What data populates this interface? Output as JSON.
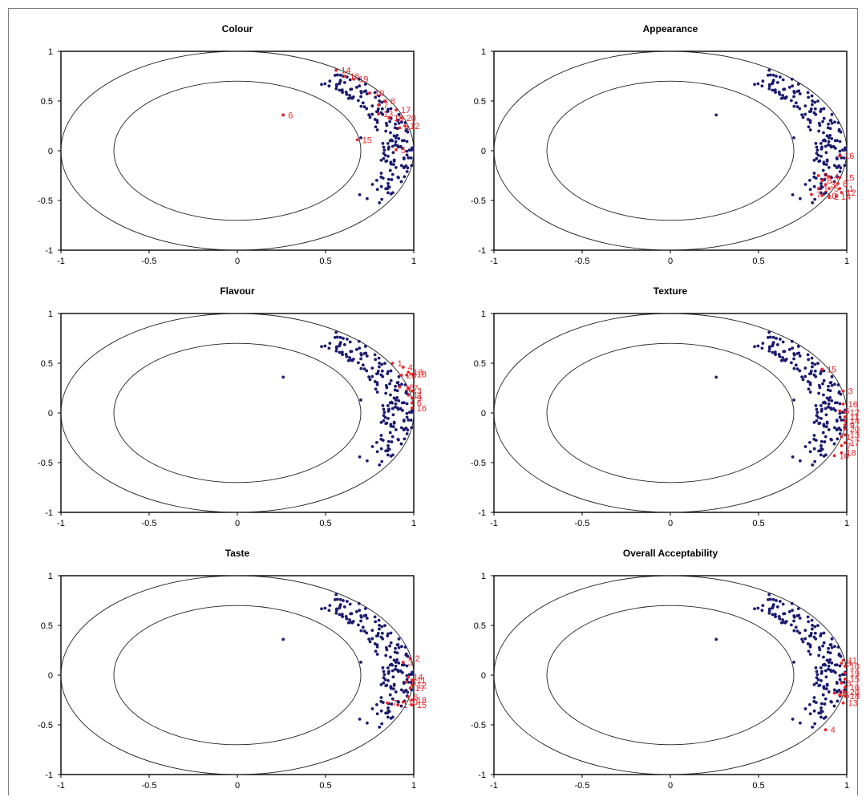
{
  "colors": {
    "background_points": "#1a1a6e",
    "highlight": "#e8262a",
    "axis": "#000000"
  },
  "chart_data": [
    {
      "type": "scatter",
      "title": "Colour",
      "xlim": [
        -1,
        1
      ],
      "ylim": [
        -1,
        1
      ],
      "xticks": [
        "-1",
        "-0.5",
        "0",
        "0.5",
        "1"
      ],
      "yticks": [
        "1",
        "0.5",
        "0",
        "-0.5",
        "-1"
      ],
      "circles": [
        1,
        0.7
      ],
      "labels": [
        {
          "t": "14",
          "x": 0.56,
          "y": 0.81
        },
        {
          "t": "16",
          "x": 0.61,
          "y": 0.75
        },
        {
          "t": "19",
          "x": 0.66,
          "y": 0.72
        },
        {
          "t": "10",
          "x": 0.75,
          "y": 0.58
        },
        {
          "t": "8",
          "x": 0.84,
          "y": 0.5
        },
        {
          "t": "7",
          "x": 0.8,
          "y": 0.46
        },
        {
          "t": "17",
          "x": 0.9,
          "y": 0.41
        },
        {
          "t": "13",
          "x": 0.8,
          "y": 0.37
        },
        {
          "t": "18",
          "x": 0.86,
          "y": 0.33
        },
        {
          "t": "20",
          "x": 0.93,
          "y": 0.33
        },
        {
          "t": "12",
          "x": 0.95,
          "y": 0.25
        },
        {
          "t": "4",
          "x": 0.92,
          "y": 0.23
        },
        {
          "t": "6",
          "x": 0.26,
          "y": 0.36
        },
        {
          "t": "15",
          "x": 0.68,
          "y": 0.11
        },
        {
          "t": "5",
          "x": 0.9,
          "y": 0.01
        }
      ]
    },
    {
      "type": "scatter",
      "title": "Appearance",
      "xlim": [
        -1,
        1
      ],
      "ylim": [
        -1,
        1
      ],
      "xticks": [
        "-1",
        "-0.5",
        "0",
        "0.5",
        "1"
      ],
      "yticks": [
        "1",
        "0.5",
        "0",
        "-0.5",
        "-1"
      ],
      "circles": [
        1,
        0.7
      ],
      "labels": [
        {
          "t": "16",
          "x": 0.96,
          "y": -0.05
        },
        {
          "t": "9",
          "x": 0.84,
          "y": -0.25
        },
        {
          "t": "4",
          "x": 0.9,
          "y": -0.26
        },
        {
          "t": "15",
          "x": 0.96,
          "y": -0.27
        },
        {
          "t": "8",
          "x": 0.86,
          "y": -0.3
        },
        {
          "t": "3",
          "x": 0.88,
          "y": -0.34
        },
        {
          "t": "6",
          "x": 0.95,
          "y": -0.33
        },
        {
          "t": "1",
          "x": 0.84,
          "y": -0.38
        },
        {
          "t": "5",
          "x": 0.9,
          "y": -0.38
        },
        {
          "t": "11",
          "x": 0.96,
          "y": -0.38
        },
        {
          "t": "7",
          "x": 0.8,
          "y": -0.44
        },
        {
          "t": "2",
          "x": 0.9,
          "y": -0.46
        },
        {
          "t": "12",
          "x": 0.97,
          "y": -0.42
        },
        {
          "t": "10",
          "x": 0.86,
          "y": -0.45
        },
        {
          "t": "14",
          "x": 0.94,
          "y": -0.46
        }
      ]
    },
    {
      "type": "scatter",
      "title": "Flavour",
      "xlim": [
        -1,
        1
      ],
      "ylim": [
        -1,
        1
      ],
      "xticks": [
        "-1",
        "-0.5",
        "0",
        "0.5",
        "1"
      ],
      "yticks": [
        "1",
        "0.5",
        "0",
        "-0.5",
        "-1"
      ],
      "circles": [
        1,
        0.7
      ],
      "labels": [
        {
          "t": "1",
          "x": 0.88,
          "y": 0.5
        },
        {
          "t": "4",
          "x": 0.94,
          "y": 0.46
        },
        {
          "t": "13",
          "x": 0.97,
          "y": 0.41
        },
        {
          "t": "2",
          "x": 0.93,
          "y": 0.38
        },
        {
          "t": "8",
          "x": 0.96,
          "y": 0.38
        },
        {
          "t": "18",
          "x": 0.99,
          "y": 0.39
        },
        {
          "t": "18",
          "x": 0.92,
          "y": 0.26
        },
        {
          "t": "7",
          "x": 0.97,
          "y": 0.25
        },
        {
          "t": "3",
          "x": 0.99,
          "y": 0.22
        },
        {
          "t": "11",
          "x": 0.97,
          "y": 0.18
        },
        {
          "t": "9",
          "x": 0.99,
          "y": 0.15
        },
        {
          "t": "6",
          "x": 0.99,
          "y": 0.1
        },
        {
          "t": "16",
          "x": 0.99,
          "y": 0.05
        }
      ]
    },
    {
      "type": "scatter",
      "title": "Texture",
      "xlim": [
        -1,
        1
      ],
      "ylim": [
        -1,
        1
      ],
      "xticks": [
        "-1",
        "-0.5",
        "0",
        "0.5",
        "1"
      ],
      "yticks": [
        "1",
        "0.5",
        "0",
        "-0.5",
        "-1"
      ],
      "circles": [
        1,
        0.7
      ],
      "labels": [
        {
          "t": "15",
          "x": 0.86,
          "y": 0.44
        },
        {
          "t": "3",
          "x": 0.98,
          "y": 0.22
        },
        {
          "t": "16",
          "x": 0.98,
          "y": 0.09
        },
        {
          "t": "6",
          "x": 0.96,
          "y": 0.02
        },
        {
          "t": "12",
          "x": 0.99,
          "y": 0.01
        },
        {
          "t": "11",
          "x": 0.99,
          "y": -0.04
        },
        {
          "t": "14",
          "x": 0.99,
          "y": -0.08
        },
        {
          "t": "9",
          "x": 0.99,
          "y": -0.12
        },
        {
          "t": "20",
          "x": 0.99,
          "y": -0.16
        },
        {
          "t": "13",
          "x": 0.99,
          "y": -0.22
        },
        {
          "t": "1",
          "x": 0.97,
          "y": -0.24
        },
        {
          "t": "17",
          "x": 0.99,
          "y": -0.3
        },
        {
          "t": "7",
          "x": 0.97,
          "y": -0.33
        },
        {
          "t": "18",
          "x": 0.97,
          "y": -0.4
        },
        {
          "t": "10",
          "x": 0.93,
          "y": -0.43
        }
      ]
    },
    {
      "type": "scatter",
      "title": "Taste",
      "xlim": [
        -1,
        1
      ],
      "ylim": [
        -1,
        1
      ],
      "xticks": [
        "-1",
        "-0.5",
        "0",
        "0.5",
        "1"
      ],
      "yticks": [
        "1",
        "0.5",
        "0",
        "-0.5",
        "-1"
      ],
      "circles": [
        1,
        0.7
      ],
      "labels": [
        {
          "t": "2",
          "x": 0.98,
          "y": 0.17
        },
        {
          "t": "3",
          "x": 0.94,
          "y": 0.13
        },
        {
          "t": "14",
          "x": 0.97,
          "y": -0.02
        },
        {
          "t": "11",
          "x": 0.99,
          "y": -0.05
        },
        {
          "t": "5",
          "x": 0.96,
          "y": -0.07
        },
        {
          "t": "12",
          "x": 0.99,
          "y": -0.1
        },
        {
          "t": "17",
          "x": 0.98,
          "y": -0.13
        },
        {
          "t": "6",
          "x": 0.97,
          "y": -0.22
        },
        {
          "t": "18",
          "x": 0.99,
          "y": -0.25
        },
        {
          "t": "10",
          "x": 0.94,
          "y": -0.27
        },
        {
          "t": "1",
          "x": 0.91,
          "y": -0.3
        },
        {
          "t": "15",
          "x": 0.99,
          "y": -0.3
        },
        {
          "t": "7",
          "x": 0.85,
          "y": -0.28
        }
      ]
    },
    {
      "type": "scatter",
      "title": "Overall Acceptability",
      "xlim": [
        -1,
        1
      ],
      "ylim": [
        -1,
        1
      ],
      "xticks": [
        "-1",
        "-0.5",
        "0",
        "0.5",
        "1"
      ],
      "yticks": [
        "1",
        "0.5",
        "0",
        "-0.5",
        "-1"
      ],
      "circles": [
        1,
        0.7
      ],
      "labels": [
        {
          "t": "11",
          "x": 0.98,
          "y": 0.15
        },
        {
          "t": "8",
          "x": 0.97,
          "y": 0.12
        },
        {
          "t": "10",
          "x": 0.99,
          "y": 0.09
        },
        {
          "t": "19",
          "x": 0.99,
          "y": 0.02
        },
        {
          "t": "15",
          "x": 0.99,
          "y": -0.04
        },
        {
          "t": "6",
          "x": 0.97,
          "y": -0.08
        },
        {
          "t": "16",
          "x": 0.99,
          "y": -0.12
        },
        {
          "t": "20",
          "x": 0.99,
          "y": -0.17
        },
        {
          "t": "9",
          "x": 0.93,
          "y": -0.18
        },
        {
          "t": "5",
          "x": 0.96,
          "y": -0.2
        },
        {
          "t": "18",
          "x": 0.99,
          "y": -0.21
        },
        {
          "t": "13",
          "x": 0.98,
          "y": -0.28
        },
        {
          "t": "4",
          "x": 0.88,
          "y": -0.55
        }
      ]
    }
  ]
}
